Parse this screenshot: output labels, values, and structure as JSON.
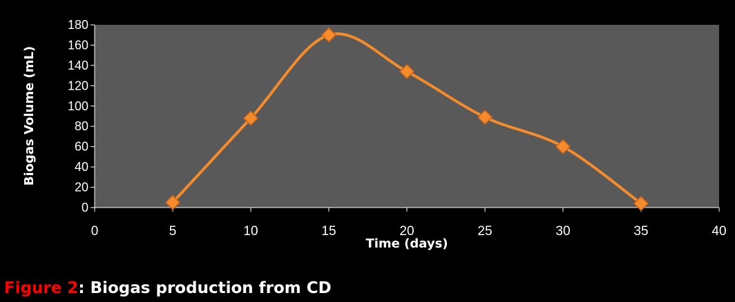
{
  "chart_data": {
    "type": "line",
    "xlabel": "Time (days)",
    "ylabel": "Biogas Volume (mL)",
    "xlim": [
      0,
      40
    ],
    "ylim": [
      0,
      180
    ],
    "x_ticks": [
      "0",
      "5",
      "10",
      "15",
      "20",
      "25",
      "30",
      "35",
      "40"
    ],
    "y_ticks": [
      "0",
      "20",
      "40",
      "60",
      "80",
      "100",
      "120",
      "140",
      "160",
      "180"
    ],
    "grid": false,
    "legend": "none",
    "line_style": "smoothed",
    "marker": "diamond",
    "colors": {
      "background": "#000000",
      "plot_area": "#595959",
      "series": "#f68b2b",
      "marker_fill": "#f68b2b",
      "text": "#ffffff",
      "caption_number": "#ff0000"
    },
    "series": [
      {
        "x": [
          5,
          10,
          15,
          20,
          25,
          30,
          35
        ],
        "y": [
          5,
          88,
          170,
          134,
          89,
          60,
          4
        ]
      }
    ]
  },
  "caption": {
    "label": "Figure 2",
    "text": ": Biogas production from CD"
  }
}
